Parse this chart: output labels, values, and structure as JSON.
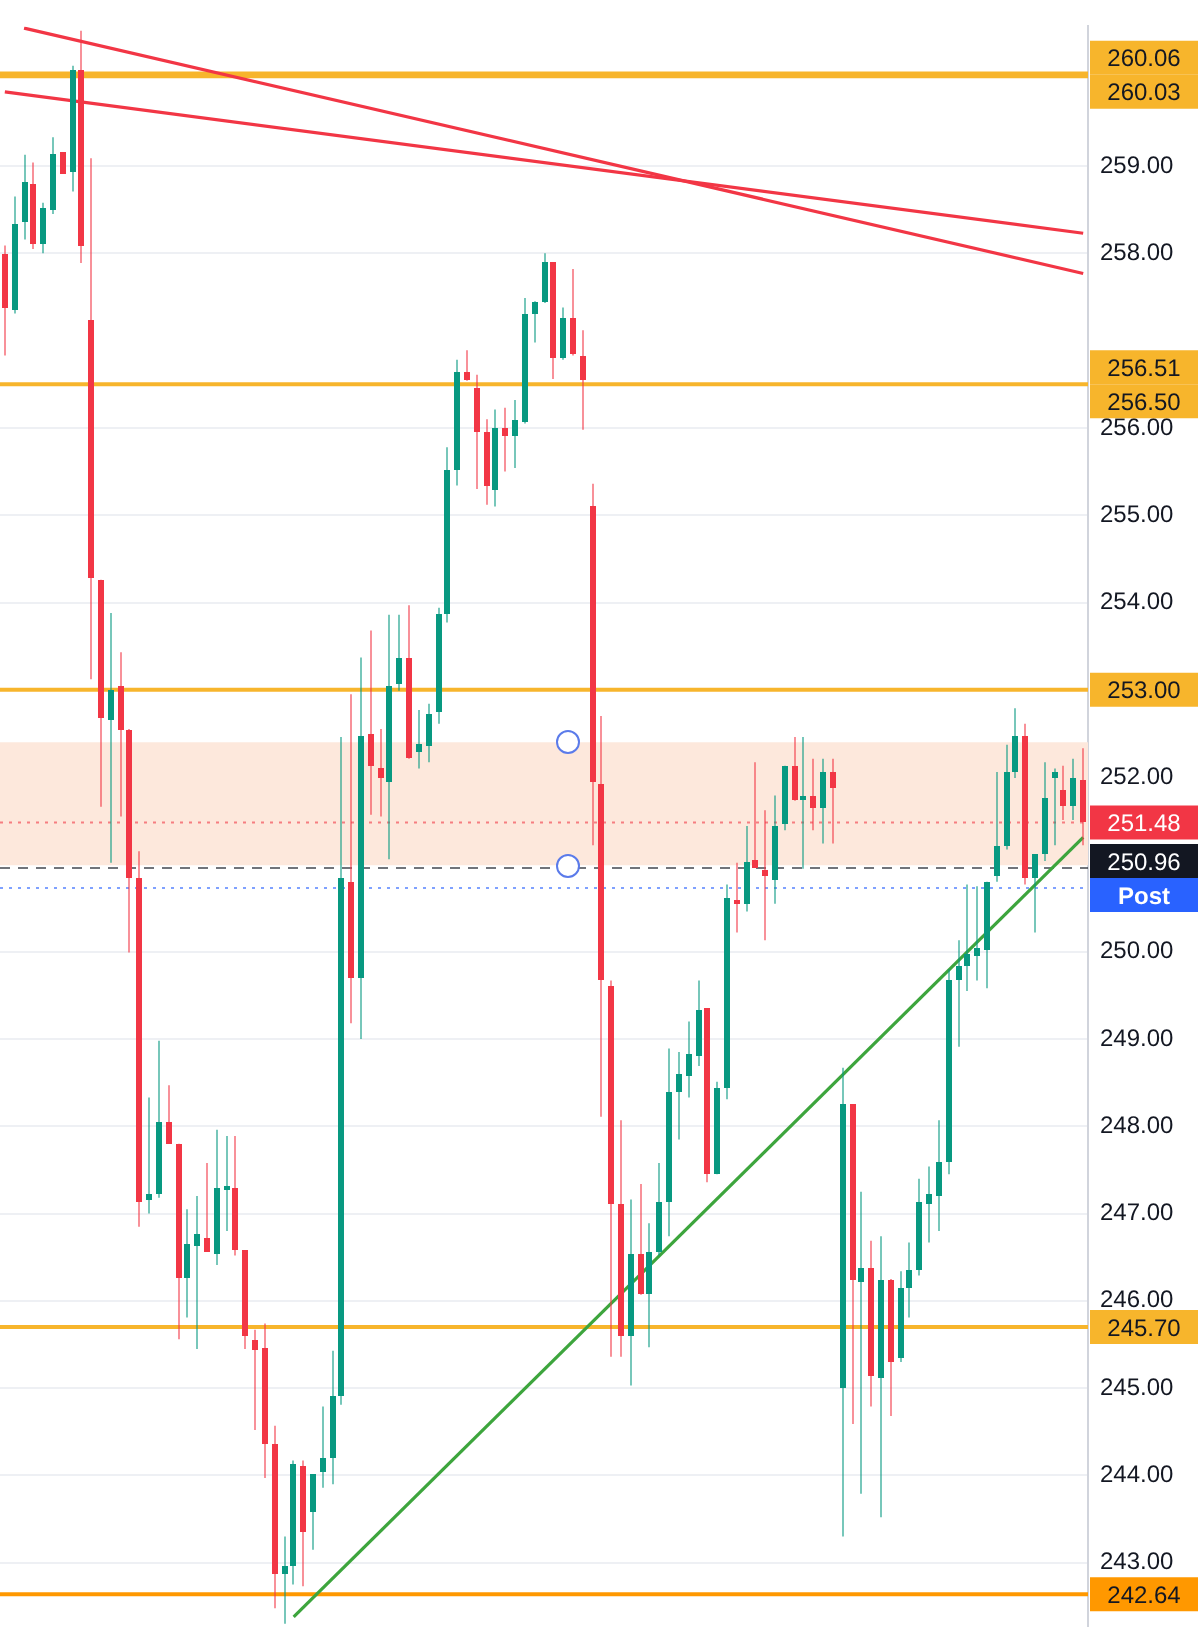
{
  "chart_data": {
    "type": "candlestick",
    "categories": [
      null,
      null,
      null,
      null,
      null,
      null,
      null,
      null,
      null,
      null,
      null,
      null,
      null,
      null,
      null,
      null,
      null,
      null,
      null,
      null,
      null,
      null,
      null,
      null,
      null,
      null,
      null,
      null,
      null,
      null,
      null,
      null,
      null,
      null,
      null,
      null,
      null,
      null,
      null,
      null,
      null,
      null,
      null,
      null,
      null,
      null,
      null,
      null,
      null,
      null,
      null,
      null,
      null,
      null,
      null,
      null,
      null,
      null,
      null,
      null,
      null,
      null,
      null,
      null,
      null,
      null,
      null,
      null,
      null,
      null,
      null,
      null,
      null,
      null,
      null,
      null,
      null,
      null,
      null,
      null,
      null,
      null,
      null,
      null,
      null,
      null,
      null,
      null,
      null,
      null,
      null,
      null,
      null,
      null,
      null,
      null,
      null,
      null,
      null,
      null,
      null,
      null,
      null,
      null,
      null,
      null,
      null,
      null,
      null,
      null,
      null,
      null,
      null
    ],
    "ohlc": [
      [
        258.0,
        258.09,
        256.83,
        257.38
      ],
      [
        257.34,
        258.65,
        257.31,
        258.33
      ],
      [
        258.36,
        259.13,
        258.16,
        258.82
      ],
      [
        258.8,
        259.04,
        258.05,
        258.11
      ],
      [
        258.11,
        258.58,
        258.0,
        258.51
      ],
      [
        258.49,
        259.33,
        258.45,
        259.13
      ],
      [
        259.16,
        259.16,
        258.91,
        258.91
      ],
      [
        258.93,
        260.15,
        258.71,
        260.09
      ],
      [
        260.09,
        260.55,
        257.89,
        258.09
      ],
      [
        257.23,
        259.09,
        253.12,
        254.28
      ],
      [
        254.26,
        254.26,
        251.66,
        252.68
      ],
      [
        252.66,
        253.88,
        251.02,
        252.99
      ],
      [
        253.04,
        253.43,
        251.55,
        252.55
      ],
      [
        252.55,
        252.55,
        249.99,
        250.84
      ],
      [
        250.84,
        251.15,
        246.85,
        247.14
      ],
      [
        247.16,
        248.33,
        247.0,
        247.23
      ],
      [
        247.23,
        248.98,
        247.18,
        248.05
      ],
      [
        248.05,
        248.47,
        247.8,
        247.8
      ],
      [
        247.8,
        247.8,
        245.56,
        246.27
      ],
      [
        246.27,
        247.05,
        245.81,
        246.65
      ],
      [
        246.63,
        247.2,
        245.45,
        246.76
      ],
      [
        246.72,
        247.58,
        246.56,
        246.56
      ],
      [
        246.54,
        247.96,
        246.41,
        247.29
      ],
      [
        247.27,
        247.89,
        246.8,
        247.31
      ],
      [
        247.29,
        247.89,
        246.52,
        246.58
      ],
      [
        246.58,
        246.58,
        245.45,
        245.59
      ],
      [
        245.56,
        245.67,
        244.52,
        245.43
      ],
      [
        245.45,
        245.74,
        243.97,
        244.37
      ],
      [
        244.37,
        244.57,
        242.48,
        242.86
      ],
      [
        242.86,
        243.3,
        242.3,
        242.97
      ],
      [
        242.97,
        244.17,
        242.75,
        244.12
      ],
      [
        244.1,
        244.17,
        242.73,
        243.35
      ],
      [
        243.57,
        244.01,
        243.15,
        244.01
      ],
      [
        244.03,
        244.79,
        243.86,
        244.19
      ],
      [
        244.19,
        245.43,
        243.9,
        244.9
      ],
      [
        244.92,
        252.46,
        244.81,
        250.84
      ],
      [
        250.8,
        252.95,
        249.18,
        249.69
      ],
      [
        249.71,
        253.37,
        249.0,
        252.48
      ],
      [
        252.5,
        253.68,
        251.57,
        252.13
      ],
      [
        252.1,
        252.55,
        251.55,
        251.99
      ],
      [
        251.95,
        253.86,
        251.06,
        253.04
      ],
      [
        253.06,
        253.86,
        252.99,
        253.37
      ],
      [
        253.37,
        253.97,
        252.21,
        252.21
      ],
      [
        252.28,
        252.77,
        252.1,
        252.39
      ],
      [
        252.35,
        252.84,
        252.17,
        252.73
      ],
      [
        252.75,
        253.94,
        252.61,
        253.88
      ],
      [
        253.86,
        255.78,
        253.77,
        255.52
      ],
      [
        255.52,
        256.78,
        255.34,
        256.63
      ],
      [
        256.63,
        256.89,
        256.54,
        256.54
      ],
      [
        256.45,
        256.61,
        255.3,
        255.96
      ],
      [
        255.96,
        256.1,
        255.12,
        255.34
      ],
      [
        255.3,
        256.21,
        255.1,
        256.01
      ],
      [
        256.01,
        256.23,
        255.5,
        255.9
      ],
      [
        255.9,
        256.32,
        255.54,
        256.1
      ],
      [
        256.07,
        257.49,
        256.05,
        257.31
      ],
      [
        257.31,
        257.45,
        256.98,
        257.45
      ],
      [
        257.45,
        258.0,
        257.43,
        257.89
      ],
      [
        257.89,
        257.89,
        256.56,
        256.8
      ],
      [
        256.8,
        257.38,
        256.78,
        257.25
      ],
      [
        257.27,
        257.82,
        256.83,
        256.85
      ],
      [
        256.83,
        257.12,
        255.98,
        256.54
      ],
      [
        255.1,
        255.36,
        251.22,
        251.95
      ],
      [
        251.93,
        252.7,
        248.11,
        249.67
      ],
      [
        249.6,
        249.67,
        245.36,
        247.12
      ],
      [
        247.12,
        248.07,
        245.36,
        245.59
      ],
      [
        245.59,
        247.16,
        245.03,
        246.54
      ],
      [
        246.54,
        247.34,
        246.07,
        246.07
      ],
      [
        246.07,
        246.89,
        245.47,
        246.56
      ],
      [
        246.56,
        247.58,
        246.52,
        247.14
      ],
      [
        247.14,
        248.89,
        246.74,
        248.4
      ],
      [
        248.4,
        248.85,
        247.85,
        248.6
      ],
      [
        248.58,
        249.2,
        248.33,
        248.82
      ],
      [
        248.8,
        249.67,
        248.69,
        249.33
      ],
      [
        249.35,
        249.35,
        247.36,
        247.45
      ],
      [
        247.45,
        248.51,
        247.45,
        248.45
      ],
      [
        248.45,
        250.77,
        248.31,
        250.62
      ],
      [
        250.6,
        251.02,
        250.22,
        250.55
      ],
      [
        250.55,
        251.44,
        250.46,
        251.02
      ],
      [
        251.04,
        252.17,
        250.97,
        250.97
      ],
      [
        250.93,
        251.62,
        250.13,
        250.86
      ],
      [
        250.82,
        251.79,
        250.55,
        251.44
      ],
      [
        251.46,
        252.13,
        251.39,
        252.13
      ],
      [
        252.13,
        252.46,
        251.73,
        251.73
      ],
      [
        251.73,
        252.46,
        250.95,
        251.79
      ],
      [
        251.79,
        252.21,
        251.39,
        251.64
      ],
      [
        251.64,
        252.21,
        251.24,
        252.06
      ],
      [
        252.06,
        252.21,
        251.24,
        251.88
      ],
      [
        245.01,
        248.67,
        243.3,
        248.25
      ],
      [
        248.25,
        248.25,
        244.59,
        246.23
      ],
      [
        246.21,
        247.25,
        243.79,
        246.38
      ],
      [
        246.38,
        246.69,
        244.79,
        245.14
      ],
      [
        245.12,
        246.74,
        243.52,
        246.25
      ],
      [
        246.25,
        246.25,
        244.68,
        245.3
      ],
      [
        245.34,
        246.34,
        245.3,
        246.14
      ],
      [
        246.14,
        246.67,
        245.81,
        246.36
      ],
      [
        246.36,
        247.4,
        246.29,
        247.14
      ],
      [
        247.12,
        247.54,
        246.67,
        247.23
      ],
      [
        247.2,
        248.07,
        246.8,
        247.58
      ],
      [
        247.58,
        249.8,
        247.45,
        249.67
      ],
      [
        249.67,
        250.13,
        248.91,
        249.84
      ],
      [
        249.84,
        250.77,
        249.55,
        249.98
      ],
      [
        249.95,
        250.75,
        249.67,
        250.04
      ],
      [
        250.02,
        250.8,
        249.58,
        250.8
      ],
      [
        250.86,
        252.06,
        250.8,
        251.22
      ],
      [
        251.22,
        252.37,
        251.17,
        252.06
      ],
      [
        252.06,
        252.79,
        251.99,
        252.46
      ],
      [
        252.46,
        252.61,
        250.77,
        250.84
      ],
      [
        250.84,
        251.11,
        250.22,
        251.11
      ],
      [
        251.11,
        252.17,
        251.04,
        251.77
      ],
      [
        251.99,
        252.1,
        251.22,
        252.06
      ],
      [
        251.86,
        252.13,
        251.51,
        251.66
      ],
      [
        251.66,
        252.21,
        251.51,
        251.99
      ],
      [
        251.97,
        252.33,
        251.22,
        251.48
      ]
    ],
    "colors": [
      "#f23645",
      "#089981",
      "#089981",
      "#f23645",
      "#089981",
      "#089981",
      "#f23645",
      "#089981",
      "#f23645",
      "#f23645",
      "#f23645",
      "#089981",
      "#f23645",
      "#f23645",
      "#f23645",
      "#089981",
      "#089981",
      "#f23645",
      "#f23645",
      "#089981",
      "#089981",
      "#f23645",
      "#089981",
      "#089981",
      "#f23645",
      "#f23645",
      "#f23645",
      "#f23645",
      "#f23645",
      "#089981",
      "#089981",
      "#f23645",
      "#089981",
      "#089981",
      "#089981",
      "#089981",
      "#f23645",
      "#089981",
      "#f23645",
      "#f23645",
      "#089981",
      "#089981",
      "#f23645",
      "#089981",
      "#089981",
      "#089981",
      "#089981",
      "#089981",
      "#f23645",
      "#f23645",
      "#f23645",
      "#089981",
      "#f23645",
      "#089981",
      "#089981",
      "#089981",
      "#089981",
      "#f23645",
      "#089981",
      "#f23645",
      "#f23645",
      "#f23645",
      "#f23645",
      "#f23645",
      "#f23645",
      "#089981",
      "#f23645",
      "#089981",
      "#089981",
      "#089981",
      "#089981",
      "#089981",
      "#089981",
      "#f23645",
      "#089981",
      "#089981",
      "#f23645",
      "#089981",
      "#f23645",
      "#f23645",
      "#089981",
      "#089981",
      "#f23645",
      "#089981",
      "#f23645",
      "#089981",
      "#f23645",
      "#089981",
      "#f23645",
      "#089981",
      "#f23645",
      "#089981",
      "#f23645",
      "#089981",
      "#089981",
      "#089981",
      "#089981",
      "#089981",
      "#089981",
      "#089981",
      "#089981",
      "#089981",
      "#089981",
      "#089981",
      "#089981",
      "#089981",
      "#f23645",
      "#089981",
      "#089981",
      "#089981",
      "#f23645",
      "#089981",
      "#f23645"
    ],
    "series": [
      {
        "type": "line",
        "color": "#f23645",
        "values": [
          null,
          null,
          260.58,
          null,
          null,
          null,
          null,
          null,
          null,
          null,
          null,
          null,
          null,
          null,
          null,
          null,
          null,
          null,
          null,
          null,
          null,
          null,
          null,
          null,
          null,
          null,
          null,
          null,
          null,
          null,
          null,
          null,
          null,
          null,
          null,
          null,
          null,
          null,
          null,
          null,
          null,
          null,
          null,
          null,
          null,
          null,
          null,
          null,
          null,
          null,
          null,
          null,
          null,
          null,
          null,
          null,
          null,
          null,
          null,
          null,
          null,
          null,
          null,
          null,
          null,
          null,
          null,
          null,
          null,
          null,
          null,
          null,
          null,
          null,
          null,
          null,
          null,
          null,
          null,
          null,
          null,
          null,
          null,
          null,
          null,
          null,
          null,
          null,
          null,
          null,
          null,
          null,
          null,
          null,
          null,
          null,
          null,
          null,
          null,
          null,
          null,
          null,
          null,
          null,
          null,
          null,
          null,
          null,
          null,
          null,
          null,
          null,
          257.77
        ]
      },
      {
        "type": "line",
        "color": "#f23645",
        "values": [
          259.85,
          null,
          null,
          null,
          null,
          null,
          null,
          null,
          null,
          null,
          null,
          null,
          null,
          null,
          null,
          null,
          null,
          null,
          null,
          null,
          null,
          null,
          null,
          null,
          null,
          null,
          null,
          null,
          null,
          null,
          null,
          null,
          null,
          null,
          null,
          null,
          null,
          null,
          null,
          null,
          null,
          null,
          null,
          null,
          null,
          null,
          null,
          null,
          null,
          null,
          null,
          null,
          null,
          null,
          null,
          null,
          null,
          null,
          null,
          null,
          null,
          null,
          null,
          null,
          null,
          null,
          null,
          null,
          null,
          null,
          null,
          null,
          null,
          null,
          null,
          null,
          null,
          null,
          null,
          null,
          null,
          null,
          null,
          null,
          null,
          null,
          null,
          null,
          null,
          null,
          null,
          null,
          null,
          null,
          null,
          null,
          null,
          null,
          null,
          null,
          null,
          null,
          null,
          null,
          null,
          null,
          null,
          null,
          null,
          null,
          null,
          null,
          258.23
        ]
      },
      {
        "type": "line",
        "color": "#3da53d",
        "values": [
          null,
          null,
          null,
          null,
          null,
          null,
          null,
          null,
          null,
          null,
          null,
          null,
          null,
          null,
          null,
          null,
          null,
          null,
          null,
          null,
          null,
          null,
          null,
          null,
          null,
          null,
          null,
          null,
          null,
          null,
          242.38,
          null,
          null,
          null,
          null,
          null,
          null,
          null,
          null,
          null,
          null,
          null,
          null,
          null,
          null,
          null,
          null,
          null,
          null,
          null,
          null,
          null,
          null,
          null,
          null,
          null,
          null,
          null,
          null,
          null,
          null,
          null,
          null,
          null,
          null,
          null,
          null,
          null,
          null,
          null,
          null,
          null,
          null,
          null,
          null,
          null,
          null,
          null,
          null,
          null,
          null,
          null,
          null,
          null,
          null,
          null,
          null,
          null,
          null,
          null,
          null,
          null,
          null,
          null,
          null,
          null,
          null,
          null,
          null,
          null,
          null,
          null,
          null,
          null,
          null,
          null,
          null,
          null,
          null,
          null,
          null,
          null,
          251.31
        ]
      }
    ],
    "ylim": [
      242.28,
      260.6
    ],
    "yticks": [
      {
        "value": 243,
        "label": "243.00"
      },
      {
        "value": 244,
        "label": "244.00"
      },
      {
        "value": 245,
        "label": "245.00"
      },
      {
        "value": 246,
        "label": "246.00"
      },
      {
        "value": 247,
        "label": "247.00"
      },
      {
        "value": 248,
        "label": "248.00"
      },
      {
        "value": 249,
        "label": "249.00"
      },
      {
        "value": 250,
        "label": "250.00"
      },
      {
        "value": 252,
        "label": "252.00"
      },
      {
        "value": 254,
        "label": "254.00"
      },
      {
        "value": 255,
        "label": "255.00"
      },
      {
        "value": 256,
        "label": "256.00"
      },
      {
        "value": 258,
        "label": "258.00"
      },
      {
        "value": 259,
        "label": "259.00"
      }
    ],
    "tick_labels": "y",
    "grid": "y",
    "marker": "none",
    "bands": [
      {
        "axis": "y",
        "from": 250.99,
        "to": 252.4,
        "label": null,
        "color": "#fde8dc"
      }
    ],
    "ref_lines": [
      {
        "axis": "y",
        "value": 260.06,
        "label": "260.06",
        "color": "#f7b52c"
      },
      {
        "axis": "y",
        "value": 260.03,
        "label": "260.03",
        "color": "#f7b52c"
      },
      {
        "axis": "y",
        "value": 256.5,
        "label": "256.50",
        "color": "#f7b52c"
      },
      {
        "axis": "y",
        "value": 253,
        "label": "253.00",
        "color": "#f7b52c"
      },
      {
        "axis": "y",
        "value": 251.48,
        "label": "251.48",
        "color": "#f23645",
        "line_style": "dotted"
      },
      {
        "axis": "y",
        "value": 250.96,
        "label": "250.96",
        "color": "#131722",
        "line_style": "dashed"
      },
      {
        "axis": "y",
        "value": 250.73,
        "label": "Post",
        "color": "#2962ff",
        "line_style": "dotted"
      },
      {
        "axis": "y",
        "value": 245.7,
        "label": "245.70",
        "color": "#f7b52c"
      },
      {
        "axis": "y",
        "value": 242.64,
        "label": "242.64",
        "color": "#ff9800"
      }
    ],
    "annotations": [
      "256.51"
    ]
  }
}
